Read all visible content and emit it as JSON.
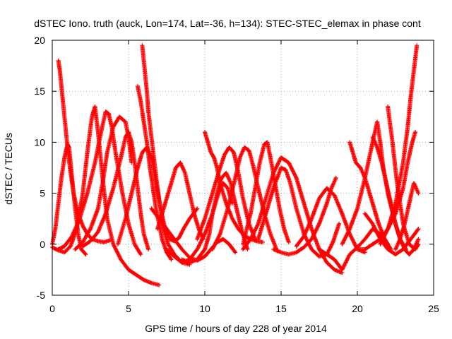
{
  "chart_data": {
    "type": "scatter",
    "title": "dSTEC Iono. truth (auck, Lon=174, Lat=-36, h=134): STEC-STEC_elemax in phase cont",
    "xlabel": "GPS time / hours of day 228 of year 2014",
    "ylabel": "dSTEC  / TECUs",
    "xlim": [
      0,
      25
    ],
    "ylim": [
      -5,
      20
    ],
    "xticks": [
      0,
      5,
      10,
      15,
      20,
      25
    ],
    "yticks": [
      -5,
      0,
      5,
      10,
      15,
      20
    ],
    "xtick_labels": [
      "0",
      "5",
      "10",
      "15",
      "20",
      "25"
    ],
    "ytick_labels": [
      "-5",
      "0",
      "5",
      "10",
      "15",
      "20"
    ],
    "grid": true,
    "marker": "+",
    "color": "#ff0000",
    "series": [
      {
        "x": [
          0.4,
          0.5,
          0.6,
          0.8,
          1.0,
          1.2,
          1.4,
          1.7,
          2.0,
          2.3,
          2.6,
          3.0,
          3.4,
          3.8
        ],
        "y": [
          18.0,
          17.0,
          15.5,
          12.5,
          9.5,
          7.0,
          5.0,
          3.0,
          1.8,
          1.0,
          0.5,
          0.3,
          0.2,
          0.4
        ]
      },
      {
        "x": [
          0.0,
          0.2,
          0.4,
          0.6,
          0.8,
          1.0,
          1.1,
          1.3,
          1.5,
          1.7,
          1.9,
          2.2
        ],
        "y": [
          0.0,
          1.5,
          4.0,
          6.5,
          8.5,
          9.8,
          9.5,
          6.5,
          3.5,
          1.0,
          -0.5,
          -1.0
        ]
      },
      {
        "x": [
          0.0,
          0.4,
          0.8,
          1.2,
          1.6,
          2.0,
          2.3,
          2.6,
          2.8,
          3.0,
          3.3,
          3.6,
          4.0,
          4.5,
          5.0,
          5.5,
          6.0,
          6.5,
          7.0
        ],
        "y": [
          -0.3,
          -0.6,
          -0.8,
          -0.2,
          1.5,
          5.0,
          9.0,
          12.5,
          13.5,
          11.0,
          6.5,
          2.5,
          0.0,
          -1.5,
          -2.5,
          -3.0,
          -3.5,
          -3.8,
          -4.0
        ]
      },
      {
        "x": [
          0.4,
          0.8,
          1.3,
          1.8,
          2.3,
          2.8,
          3.2,
          3.5,
          3.7,
          3.9,
          4.2,
          4.6,
          5.0,
          5.4,
          5.8
        ],
        "y": [
          -0.5,
          -0.2,
          0.8,
          2.5,
          5.0,
          8.0,
          11.0,
          13.0,
          12.8,
          11.5,
          8.5,
          5.0,
          2.0,
          0.0,
          -1.0
        ]
      },
      {
        "x": [
          1.5,
          2.0,
          2.5,
          3.0,
          3.3,
          3.6,
          4.0,
          4.4,
          4.8,
          5.0,
          5.2
        ],
        "y": [
          -0.5,
          0.2,
          1.5,
          3.5,
          6.0,
          9.0,
          11.5,
          12.5,
          12.0,
          10.5,
          8.0
        ]
      },
      {
        "x": [
          2.0,
          2.5,
          3.0,
          3.5,
          4.0,
          4.5,
          4.8,
          5.0,
          5.2,
          5.4,
          5.6,
          5.8,
          6.0,
          6.3
        ],
        "y": [
          -0.2,
          0.3,
          1.2,
          3.0,
          5.5,
          8.5,
          10.5,
          11.0,
          10.0,
          8.0,
          5.5,
          3.0,
          1.0,
          -0.5
        ]
      },
      {
        "x": [
          5.9,
          6.0,
          6.1,
          6.2,
          6.3,
          6.5,
          6.7,
          6.9,
          7.1,
          7.3,
          7.6,
          8.0,
          8.5,
          9.0
        ],
        "y": [
          19.5,
          18.0,
          16.5,
          15.0,
          13.0,
          10.5,
          8.0,
          5.5,
          3.5,
          1.5,
          0.0,
          -1.0,
          -1.8,
          -2.0
        ]
      },
      {
        "x": [
          5.6,
          5.8,
          6.0,
          6.2,
          6.4,
          6.6,
          6.8,
          7.0,
          7.2,
          7.5,
          7.8
        ],
        "y": [
          15.5,
          14.0,
          12.0,
          10.0,
          7.5,
          5.5,
          3.5,
          2.0,
          0.5,
          -0.8,
          -1.5
        ]
      },
      {
        "x": [
          4.3,
          4.8,
          5.2,
          5.6,
          5.9,
          6.2,
          6.5,
          6.8,
          7.1,
          7.4,
          7.7,
          8.0,
          8.3,
          8.6,
          9.0,
          9.5
        ],
        "y": [
          0.0,
          2.5,
          5.0,
          7.5,
          9.0,
          9.5,
          8.5,
          6.0,
          3.5,
          1.5,
          0.5,
          0.3,
          0.6,
          1.5,
          2.5,
          3.5
        ]
      },
      {
        "x": [
          6.9,
          7.2,
          7.5,
          7.8,
          8.1,
          8.4,
          8.7,
          9.0,
          9.3,
          9.6,
          9.9
        ],
        "y": [
          1.5,
          3.0,
          4.5,
          6.0,
          7.5,
          8.0,
          7.0,
          5.0,
          3.0,
          1.5,
          0.5
        ]
      },
      {
        "x": [
          6.5,
          7.0,
          7.5,
          8.0,
          8.5,
          9.0,
          9.5,
          10.0,
          10.4,
          10.8,
          11.2,
          11.6,
          12.0
        ],
        "y": [
          3.5,
          2.5,
          1.5,
          0.5,
          -0.5,
          -1.3,
          -1.6,
          -1.2,
          -0.5,
          0.2,
          0.5,
          0.0,
          -0.8
        ]
      },
      {
        "x": [
          7.5,
          8.0,
          8.5,
          9.0,
          9.5,
          10.0,
          10.5,
          10.9,
          11.2,
          11.5,
          11.8
        ],
        "y": [
          -0.5,
          -1.2,
          -1.8,
          -1.5,
          -0.5,
          1.0,
          3.0,
          5.0,
          6.0,
          5.5,
          4.0
        ]
      },
      {
        "x": [
          8.5,
          9.0,
          9.5,
          10.0,
          10.3,
          10.5,
          10.8,
          11.1,
          11.4,
          11.7,
          12.0,
          12.4,
          12.8
        ],
        "y": [
          -1.5,
          -1.8,
          -1.5,
          -0.5,
          1.0,
          3.0,
          5.0,
          6.5,
          7.0,
          6.0,
          4.0,
          1.5,
          -0.5
        ]
      },
      {
        "x": [
          10.0,
          10.2,
          10.4,
          10.6,
          10.8,
          11.0,
          11.4,
          11.8,
          12.2,
          12.6,
          13.0,
          13.4,
          13.8
        ],
        "y": [
          11.0,
          10.0,
          9.0,
          8.5,
          7.5,
          6.0,
          4.0,
          2.5,
          1.5,
          0.8,
          0.5,
          0.3,
          0.2
        ]
      },
      {
        "x": [
          9.5,
          10.0,
          10.5,
          11.0,
          11.3,
          11.6,
          11.9,
          12.2,
          12.5,
          12.9,
          13.3
        ],
        "y": [
          0.5,
          2.5,
          5.0,
          7.5,
          8.8,
          9.5,
          9.0,
          7.0,
          4.5,
          2.0,
          0.5
        ]
      },
      {
        "x": [
          10.5,
          11.0,
          11.5,
          12.0,
          12.3,
          12.6,
          12.9,
          13.2,
          13.5,
          13.9,
          14.3,
          14.7
        ],
        "y": [
          -0.5,
          1.0,
          3.5,
          6.5,
          8.5,
          9.5,
          9.2,
          7.5,
          5.5,
          3.0,
          1.0,
          -0.5
        ]
      },
      {
        "x": [
          12.5,
          13.0,
          13.3,
          13.6,
          13.9,
          14.1,
          14.3,
          14.6,
          14.9,
          15.2,
          15.5
        ],
        "y": [
          0.0,
          3.0,
          5.5,
          8.0,
          9.8,
          10.0,
          8.5,
          6.0,
          3.5,
          1.5,
          0.2
        ]
      },
      {
        "x": [
          12.5,
          13.0,
          13.5,
          14.0,
          14.5,
          15.0,
          15.5,
          16.0,
          16.5,
          17.0,
          17.5,
          18.0,
          18.5,
          19.0
        ],
        "y": [
          -0.5,
          0.5,
          2.0,
          4.5,
          7.0,
          8.5,
          8.0,
          6.5,
          4.0,
          1.5,
          -0.5,
          -1.8,
          -2.5,
          -2.8
        ]
      },
      {
        "x": [
          13.5,
          14.0,
          14.5,
          15.0,
          15.3,
          15.6,
          16.0,
          16.5,
          17.0,
          17.5,
          18.0,
          18.4,
          18.8
        ],
        "y": [
          0.5,
          3.0,
          5.5,
          7.5,
          7.3,
          6.0,
          3.5,
          1.0,
          -0.5,
          -1.2,
          -1.0,
          0.2,
          2.0
        ]
      },
      {
        "x": [
          14.5,
          15.0,
          15.5,
          16.0,
          16.5,
          17.0,
          17.5,
          18.0,
          18.3,
          18.6
        ],
        "y": [
          -0.5,
          -0.8,
          -1.0,
          -0.8,
          -0.3,
          0.5,
          2.0,
          4.0,
          5.5,
          6.5
        ]
      },
      {
        "x": [
          16.0,
          16.5,
          17.0,
          17.5,
          18.0,
          18.5,
          19.0,
          19.5,
          20.0,
          20.5
        ],
        "y": [
          -0.2,
          0.8,
          2.5,
          4.5,
          5.5,
          4.8,
          3.0,
          1.0,
          -0.5,
          -0.8
        ]
      },
      {
        "x": [
          17.5,
          18.0,
          18.5,
          19.0,
          19.5,
          20.0,
          20.5,
          21.0,
          21.5,
          22.0
        ],
        "y": [
          -0.5,
          -1.0,
          -1.5,
          -2.5,
          -1.0,
          -0.3,
          0.5,
          1.5,
          1.0,
          0.0
        ]
      },
      {
        "x": [
          19.5,
          19.7,
          19.9,
          20.2,
          20.5,
          20.8,
          21.1,
          21.4,
          21.8,
          22.2
        ],
        "y": [
          10.0,
          9.0,
          8.0,
          7.5,
          6.5,
          5.0,
          3.5,
          2.0,
          0.5,
          -0.5
        ]
      },
      {
        "x": [
          19.0,
          19.5,
          20.0,
          20.5,
          21.0,
          21.3,
          21.5,
          21.7,
          22.0,
          22.4,
          22.8,
          23.2
        ],
        "y": [
          0.0,
          1.5,
          3.5,
          6.5,
          10.0,
          12.0,
          10.0,
          7.5,
          5.0,
          2.5,
          0.5,
          -0.5
        ]
      },
      {
        "x": [
          21.0,
          21.3,
          21.6,
          21.9,
          22.2,
          22.5,
          22.8,
          23.1,
          23.4,
          23.7,
          24.0
        ],
        "y": [
          10.5,
          9.5,
          8.0,
          6.0,
          4.0,
          2.0,
          0.5,
          -0.5,
          -1.0,
          -0.5,
          0.5
        ]
      },
      {
        "x": [
          20.0,
          20.5,
          21.0,
          21.5,
          22.0,
          22.5,
          23.0,
          23.3,
          23.6,
          23.8
        ],
        "y": [
          -0.5,
          -0.5,
          0.0,
          0.5,
          1.5,
          3.0,
          5.5,
          8.0,
          10.0,
          11.0
        ]
      },
      {
        "x": [
          21.5,
          22.0,
          22.5,
          23.0,
          23.3,
          23.5,
          23.7,
          23.9
        ],
        "y": [
          0.0,
          1.5,
          4.0,
          8.0,
          11.5,
          14.5,
          17.0,
          19.5
        ]
      },
      {
        "x": [
          22.0,
          22.3,
          22.6,
          23.0,
          23.4,
          23.8,
          24.0
        ],
        "y": [
          13.5,
          10.0,
          6.0,
          2.0,
          0.0,
          -0.5,
          0.0
        ]
      },
      {
        "x": [
          22.5,
          22.8,
          23.1,
          23.4,
          23.7,
          24.0
        ],
        "y": [
          -0.5,
          0.5,
          2.0,
          4.0,
          6.0,
          5.0
        ]
      },
      {
        "x": [
          20.5,
          21.0,
          21.5,
          22.0,
          22.5,
          23.0,
          23.5,
          24.0
        ],
        "y": [
          3.0,
          2.0,
          0.5,
          -0.5,
          -1.0,
          -0.5,
          0.5,
          1.5
        ]
      }
    ]
  }
}
